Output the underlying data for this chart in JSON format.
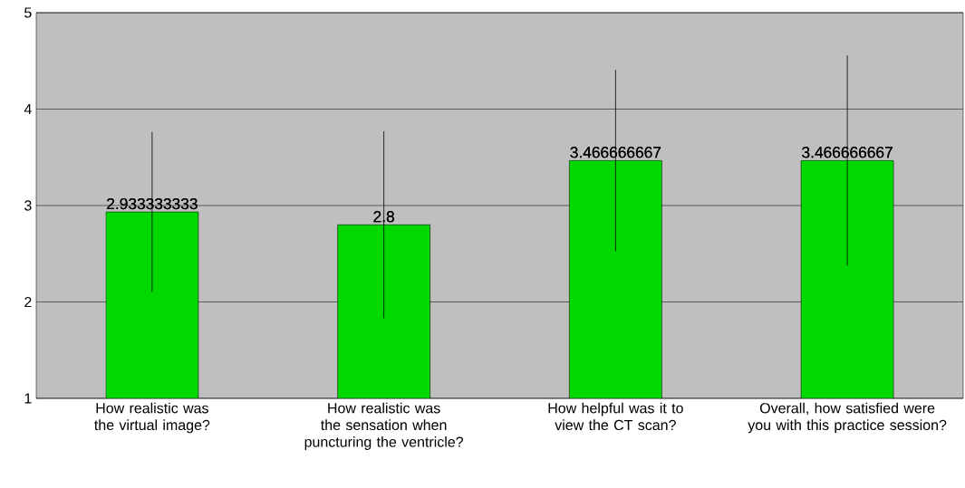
{
  "chart_data": {
    "type": "bar",
    "categories": [
      "How realistic was the virtual image?",
      "How realistic was the sensation when puncturing the ventricle?",
      "How helpful was it to view the CT scan?",
      "Overall, how satisfied were you with this practice session?"
    ],
    "values": [
      2.933333333,
      2.8,
      3.466666667,
      3.466666667
    ],
    "value_labels": [
      "2.933333333",
      "2.8",
      "3.466666667",
      "3.466666667"
    ],
    "errors": [
      0.83,
      0.97,
      0.94,
      1.09
    ],
    "color": "#00d800",
    "ylim": [
      1,
      5
    ],
    "yticks": [
      1,
      2,
      3,
      4,
      5
    ],
    "grid": "y"
  }
}
